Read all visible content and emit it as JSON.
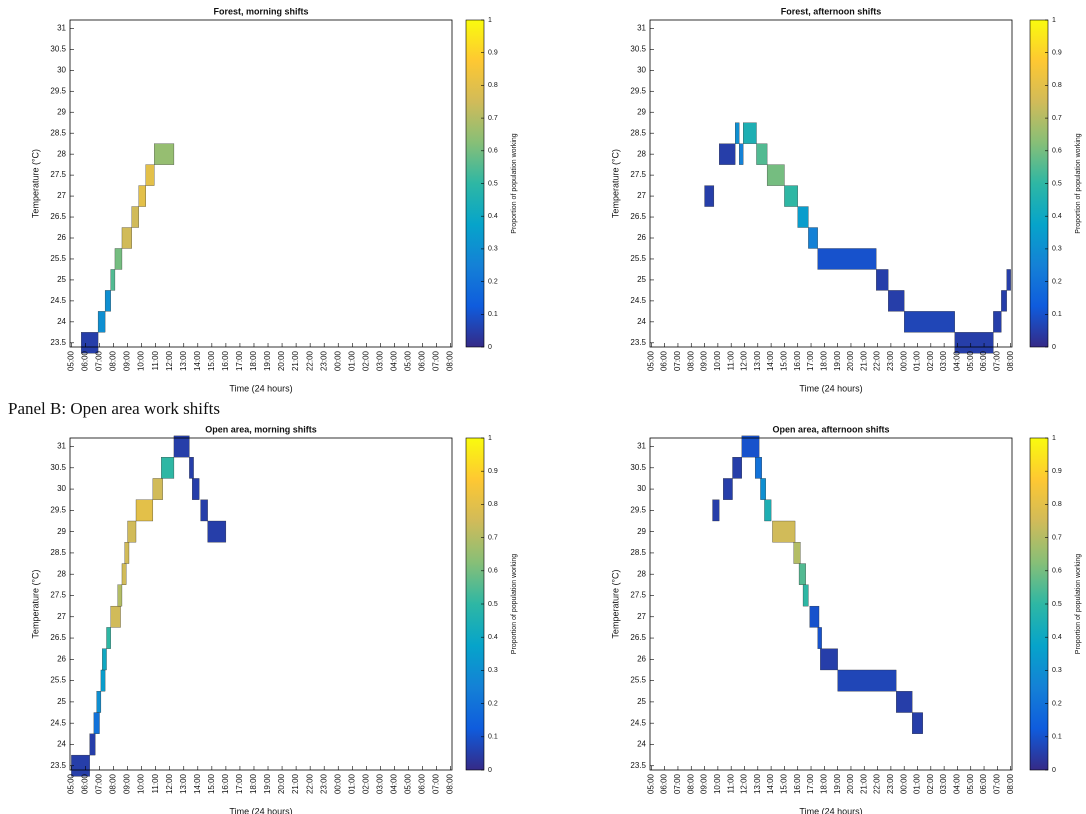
{
  "panel_label": "Panel B: Open area work shifts",
  "chart_data": [
    {
      "type": "heatmap",
      "title": "Forest, morning shifts",
      "xlabel": "Time (24 hours)",
      "ylabel": "Temperature (°C)",
      "colorbar_label": "Proportion of population working",
      "xlim": [
        4.9,
        32.1
      ],
      "xticks": [
        {
          "value": 5,
          "label": "05:00"
        },
        {
          "value": 6,
          "label": "06:00"
        },
        {
          "value": 7,
          "label": "07:00"
        },
        {
          "value": 8,
          "label": "08:00"
        },
        {
          "value": 9,
          "label": "09:00"
        },
        {
          "value": 10,
          "label": "10:00"
        },
        {
          "value": 11,
          "label": "11:00"
        },
        {
          "value": 12,
          "label": "12:00"
        },
        {
          "value": 13,
          "label": "13:00"
        },
        {
          "value": 14,
          "label": "14:00"
        },
        {
          "value": 15,
          "label": "15:00"
        },
        {
          "value": 16,
          "label": "16:00"
        },
        {
          "value": 17,
          "label": "17:00"
        },
        {
          "value": 18,
          "label": "18:00"
        },
        {
          "value": 19,
          "label": "19:00"
        },
        {
          "value": 20,
          "label": "20:00"
        },
        {
          "value": 21,
          "label": "21:00"
        },
        {
          "value": 22,
          "label": "22:00"
        },
        {
          "value": 23,
          "label": "23:00"
        },
        {
          "value": 24,
          "label": "00:00"
        },
        {
          "value": 25,
          "label": "01:00"
        },
        {
          "value": 26,
          "label": "02:00"
        },
        {
          "value": 27,
          "label": "03:00"
        },
        {
          "value": 28,
          "label": "04:00"
        },
        {
          "value": 29,
          "label": "05:00"
        },
        {
          "value": 30,
          "label": "06:00"
        },
        {
          "value": 31,
          "label": "07:00"
        },
        {
          "value": 32,
          "label": "08:00"
        }
      ],
      "ylim": [
        23.4,
        31.2
      ],
      "yticks": [
        23.5,
        24,
        24.5,
        25,
        25.5,
        26,
        26.5,
        27,
        27.5,
        28,
        28.5,
        29,
        29.5,
        30,
        30.5,
        31
      ],
      "clim": [
        0,
        1
      ],
      "cticks": [
        0,
        0.1,
        0.2,
        0.3,
        0.4,
        0.5,
        0.6,
        0.7,
        0.8,
        0.9,
        1
      ],
      "colormap": [
        "#352a87",
        "#0f5cdd",
        "#1481d6",
        "#06a4ca",
        "#2eb7a4",
        "#87bf77",
        "#d1bb59",
        "#fec832",
        "#f9fb0e"
      ],
      "cells": {
        "x0": [
          5.7,
          6.9,
          7.4,
          7.8,
          8.1,
          8.6,
          9.3,
          9.8,
          10.3,
          10.9
        ],
        "x1": [
          6.9,
          7.4,
          7.8,
          8.1,
          8.6,
          9.3,
          9.8,
          10.3,
          10.9,
          12.3
        ],
        "y": [
          23.5,
          24,
          24.5,
          25,
          25.5,
          26,
          26.5,
          27,
          27.5,
          28
        ],
        "values": [
          0.05,
          0.3,
          0.3,
          0.55,
          0.6,
          0.75,
          0.75,
          0.8,
          0.8,
          0.65
        ]
      }
    },
    {
      "type": "heatmap",
      "title": "Forest, afternoon shifts",
      "xlabel": "Time (24 hours)",
      "ylabel": "Temperature (°C)",
      "colorbar_label": "Proportion of population working",
      "xlim": [
        4.9,
        32.1
      ],
      "xticks": [
        {
          "value": 5,
          "label": "05:00"
        },
        {
          "value": 6,
          "label": "06:00"
        },
        {
          "value": 7,
          "label": "07:00"
        },
        {
          "value": 8,
          "label": "08:00"
        },
        {
          "value": 9,
          "label": "09:00"
        },
        {
          "value": 10,
          "label": "10:00"
        },
        {
          "value": 11,
          "label": "11:00"
        },
        {
          "value": 12,
          "label": "12:00"
        },
        {
          "value": 13,
          "label": "13:00"
        },
        {
          "value": 14,
          "label": "14:00"
        },
        {
          "value": 15,
          "label": "15:00"
        },
        {
          "value": 16,
          "label": "16:00"
        },
        {
          "value": 17,
          "label": "17:00"
        },
        {
          "value": 18,
          "label": "18:00"
        },
        {
          "value": 19,
          "label": "19:00"
        },
        {
          "value": 20,
          "label": "20:00"
        },
        {
          "value": 21,
          "label": "21:00"
        },
        {
          "value": 22,
          "label": "22:00"
        },
        {
          "value": 23,
          "label": "23:00"
        },
        {
          "value": 24,
          "label": "00:00"
        },
        {
          "value": 25,
          "label": "01:00"
        },
        {
          "value": 26,
          "label": "02:00"
        },
        {
          "value": 27,
          "label": "03:00"
        },
        {
          "value": 28,
          "label": "04:00"
        },
        {
          "value": 29,
          "label": "05:00"
        },
        {
          "value": 30,
          "label": "06:00"
        },
        {
          "value": 31,
          "label": "07:00"
        },
        {
          "value": 32,
          "label": "08:00"
        }
      ],
      "ylim": [
        23.4,
        31.2
      ],
      "yticks": [
        23.5,
        24,
        24.5,
        25,
        25.5,
        26,
        26.5,
        27,
        27.5,
        28,
        28.5,
        29,
        29.5,
        30,
        30.5,
        31
      ],
      "clim": [
        0,
        1
      ],
      "cticks": [
        0,
        0.1,
        0.2,
        0.3,
        0.4,
        0.5,
        0.6,
        0.7,
        0.8,
        0.9,
        1
      ],
      "colormap": [
        "#352a87",
        "#0f5cdd",
        "#1481d6",
        "#06a4ca",
        "#2eb7a4",
        "#87bf77",
        "#d1bb59",
        "#fec832",
        "#f9fb0e"
      ],
      "cells": {
        "x0": [
          9.0,
          10.1,
          11.3,
          11.6,
          11.9,
          12.9,
          13.7,
          15.0,
          16.0,
          16.8,
          17.5,
          21.9,
          22.8,
          24.0,
          27.8,
          30.7,
          31.3,
          31.7
        ],
        "x1": [
          9.7,
          11.3,
          11.6,
          11.9,
          12.9,
          13.7,
          15.0,
          16.0,
          16.8,
          17.5,
          21.9,
          22.8,
          24.0,
          27.8,
          30.7,
          31.3,
          31.7,
          32.0
        ],
        "y": [
          27,
          28,
          28.5,
          28,
          28.5,
          28,
          27.5,
          27,
          26.5,
          26,
          25.5,
          25,
          24.5,
          24,
          23.5,
          24,
          24.5,
          25
        ],
        "values": [
          0.05,
          0.05,
          0.3,
          0.25,
          0.45,
          0.55,
          0.6,
          0.5,
          0.35,
          0.25,
          0.1,
          0.05,
          0.05,
          0.07,
          0.05,
          0.05,
          0.05,
          0.05
        ]
      }
    },
    {
      "type": "heatmap",
      "title": "Open area, morning shifts",
      "xlabel": "Time (24 hours)",
      "ylabel": "Temperature (°C)",
      "colorbar_label": "Proportion of population working",
      "xlim": [
        4.9,
        32.1
      ],
      "xticks": [
        {
          "value": 5,
          "label": "05:00"
        },
        {
          "value": 6,
          "label": "06:00"
        },
        {
          "value": 7,
          "label": "07:00"
        },
        {
          "value": 8,
          "label": "08:00"
        },
        {
          "value": 9,
          "label": "09:00"
        },
        {
          "value": 10,
          "label": "10:00"
        },
        {
          "value": 11,
          "label": "11:00"
        },
        {
          "value": 12,
          "label": "12:00"
        },
        {
          "value": 13,
          "label": "13:00"
        },
        {
          "value": 14,
          "label": "14:00"
        },
        {
          "value": 15,
          "label": "15:00"
        },
        {
          "value": 16,
          "label": "16:00"
        },
        {
          "value": 17,
          "label": "17:00"
        },
        {
          "value": 18,
          "label": "18:00"
        },
        {
          "value": 19,
          "label": "19:00"
        },
        {
          "value": 20,
          "label": "20:00"
        },
        {
          "value": 21,
          "label": "21:00"
        },
        {
          "value": 22,
          "label": "22:00"
        },
        {
          "value": 23,
          "label": "23:00"
        },
        {
          "value": 24,
          "label": "00:00"
        },
        {
          "value": 25,
          "label": "01:00"
        },
        {
          "value": 26,
          "label": "02:00"
        },
        {
          "value": 27,
          "label": "03:00"
        },
        {
          "value": 28,
          "label": "04:00"
        },
        {
          "value": 29,
          "label": "05:00"
        },
        {
          "value": 30,
          "label": "06:00"
        },
        {
          "value": 31,
          "label": "07:00"
        },
        {
          "value": 32,
          "label": "08:00"
        }
      ],
      "ylim": [
        23.4,
        31.2
      ],
      "yticks": [
        23.5,
        24,
        24.5,
        25,
        25.5,
        26,
        26.5,
        27,
        27.5,
        28,
        28.5,
        29,
        29.5,
        30,
        30.5,
        31
      ],
      "clim": [
        0,
        1
      ],
      "cticks": [
        0,
        0.1,
        0.2,
        0.3,
        0.4,
        0.5,
        0.6,
        0.7,
        0.8,
        0.9,
        1
      ],
      "colormap": [
        "#352a87",
        "#0f5cdd",
        "#1481d6",
        "#06a4ca",
        "#2eb7a4",
        "#87bf77",
        "#d1bb59",
        "#fec832",
        "#f9fb0e"
      ],
      "cells": {
        "x0": [
          5.0,
          6.3,
          6.6,
          6.8,
          7.1,
          7.2,
          7.5,
          7.8,
          8.3,
          8.6,
          8.8,
          9.0,
          9.6,
          10.8,
          11.4,
          12.3,
          13.4,
          13.6,
          14.2,
          14.7
        ],
        "x1": [
          6.3,
          6.7,
          7.0,
          7.1,
          7.4,
          7.5,
          7.8,
          8.5,
          8.6,
          8.9,
          9.1,
          9.6,
          10.8,
          11.5,
          12.3,
          13.4,
          13.7,
          14.1,
          14.7,
          16.0
        ],
        "y": [
          23.5,
          24,
          24.5,
          25,
          25.5,
          26,
          26.5,
          27,
          27.5,
          28,
          28.5,
          29,
          29.5,
          30,
          30.5,
          31,
          30.5,
          30,
          29.5,
          29
        ],
        "values": [
          0.05,
          0.05,
          0.2,
          0.3,
          0.35,
          0.4,
          0.5,
          0.75,
          0.7,
          0.75,
          0.75,
          0.75,
          0.8,
          0.75,
          0.5,
          0.05,
          0.05,
          0.05,
          0.05,
          0.05
        ]
      }
    },
    {
      "type": "heatmap",
      "title": "Open area, afternoon shifts",
      "xlabel": "Time (24 hours)",
      "ylabel": "Temperature (°C)",
      "colorbar_label": "Proportion of population working",
      "xlim": [
        4.9,
        32.1
      ],
      "xticks": [
        {
          "value": 5,
          "label": "05:00"
        },
        {
          "value": 6,
          "label": "06:00"
        },
        {
          "value": 7,
          "label": "07:00"
        },
        {
          "value": 8,
          "label": "08:00"
        },
        {
          "value": 9,
          "label": "09:00"
        },
        {
          "value": 10,
          "label": "10:00"
        },
        {
          "value": 11,
          "label": "11:00"
        },
        {
          "value": 12,
          "label": "12:00"
        },
        {
          "value": 13,
          "label": "13:00"
        },
        {
          "value": 14,
          "label": "14:00"
        },
        {
          "value": 15,
          "label": "15:00"
        },
        {
          "value": 16,
          "label": "16:00"
        },
        {
          "value": 17,
          "label": "17:00"
        },
        {
          "value": 18,
          "label": "18:00"
        },
        {
          "value": 19,
          "label": "19:00"
        },
        {
          "value": 20,
          "label": "20:00"
        },
        {
          "value": 21,
          "label": "21:00"
        },
        {
          "value": 22,
          "label": "22:00"
        },
        {
          "value": 23,
          "label": "23:00"
        },
        {
          "value": 24,
          "label": "00:00"
        },
        {
          "value": 25,
          "label": "01:00"
        },
        {
          "value": 26,
          "label": "02:00"
        },
        {
          "value": 27,
          "label": "03:00"
        },
        {
          "value": 28,
          "label": "04:00"
        },
        {
          "value": 29,
          "label": "05:00"
        },
        {
          "value": 30,
          "label": "06:00"
        },
        {
          "value": 31,
          "label": "07:00"
        },
        {
          "value": 32,
          "label": "08:00"
        }
      ],
      "ylim": [
        23.4,
        31.2
      ],
      "yticks": [
        23.5,
        24,
        24.5,
        25,
        25.5,
        26,
        26.5,
        27,
        27.5,
        28,
        28.5,
        29,
        29.5,
        30,
        30.5,
        31
      ],
      "clim": [
        0,
        1
      ],
      "cticks": [
        0,
        0.1,
        0.2,
        0.3,
        0.4,
        0.5,
        0.6,
        0.7,
        0.8,
        0.9,
        1
      ],
      "colormap": [
        "#352a87",
        "#0f5cdd",
        "#1481d6",
        "#06a4ca",
        "#2eb7a4",
        "#87bf77",
        "#d1bb59",
        "#fec832",
        "#f9fb0e"
      ],
      "cells": {
        "x0": [
          9.6,
          10.4,
          11.1,
          11.8,
          12.8,
          13.2,
          13.5,
          14.1,
          15.7,
          16.1,
          16.4,
          16.9,
          17.5,
          17.7,
          19.0,
          23.4,
          24.6
        ],
        "x1": [
          10.1,
          11.1,
          11.8,
          13.1,
          13.3,
          13.6,
          14.0,
          15.8,
          16.2,
          16.6,
          16.8,
          17.6,
          17.8,
          19.0,
          23.4,
          24.6,
          25.4
        ],
        "y": [
          29.5,
          30,
          30.5,
          31,
          30.5,
          30,
          29.5,
          29,
          28.5,
          28,
          27.5,
          27,
          26.5,
          26,
          25.5,
          25,
          24.5
        ],
        "values": [
          0.05,
          0.05,
          0.05,
          0.1,
          0.2,
          0.3,
          0.45,
          0.75,
          0.7,
          0.55,
          0.5,
          0.1,
          0.1,
          0.05,
          0.07,
          0.05,
          0.05
        ]
      }
    }
  ]
}
